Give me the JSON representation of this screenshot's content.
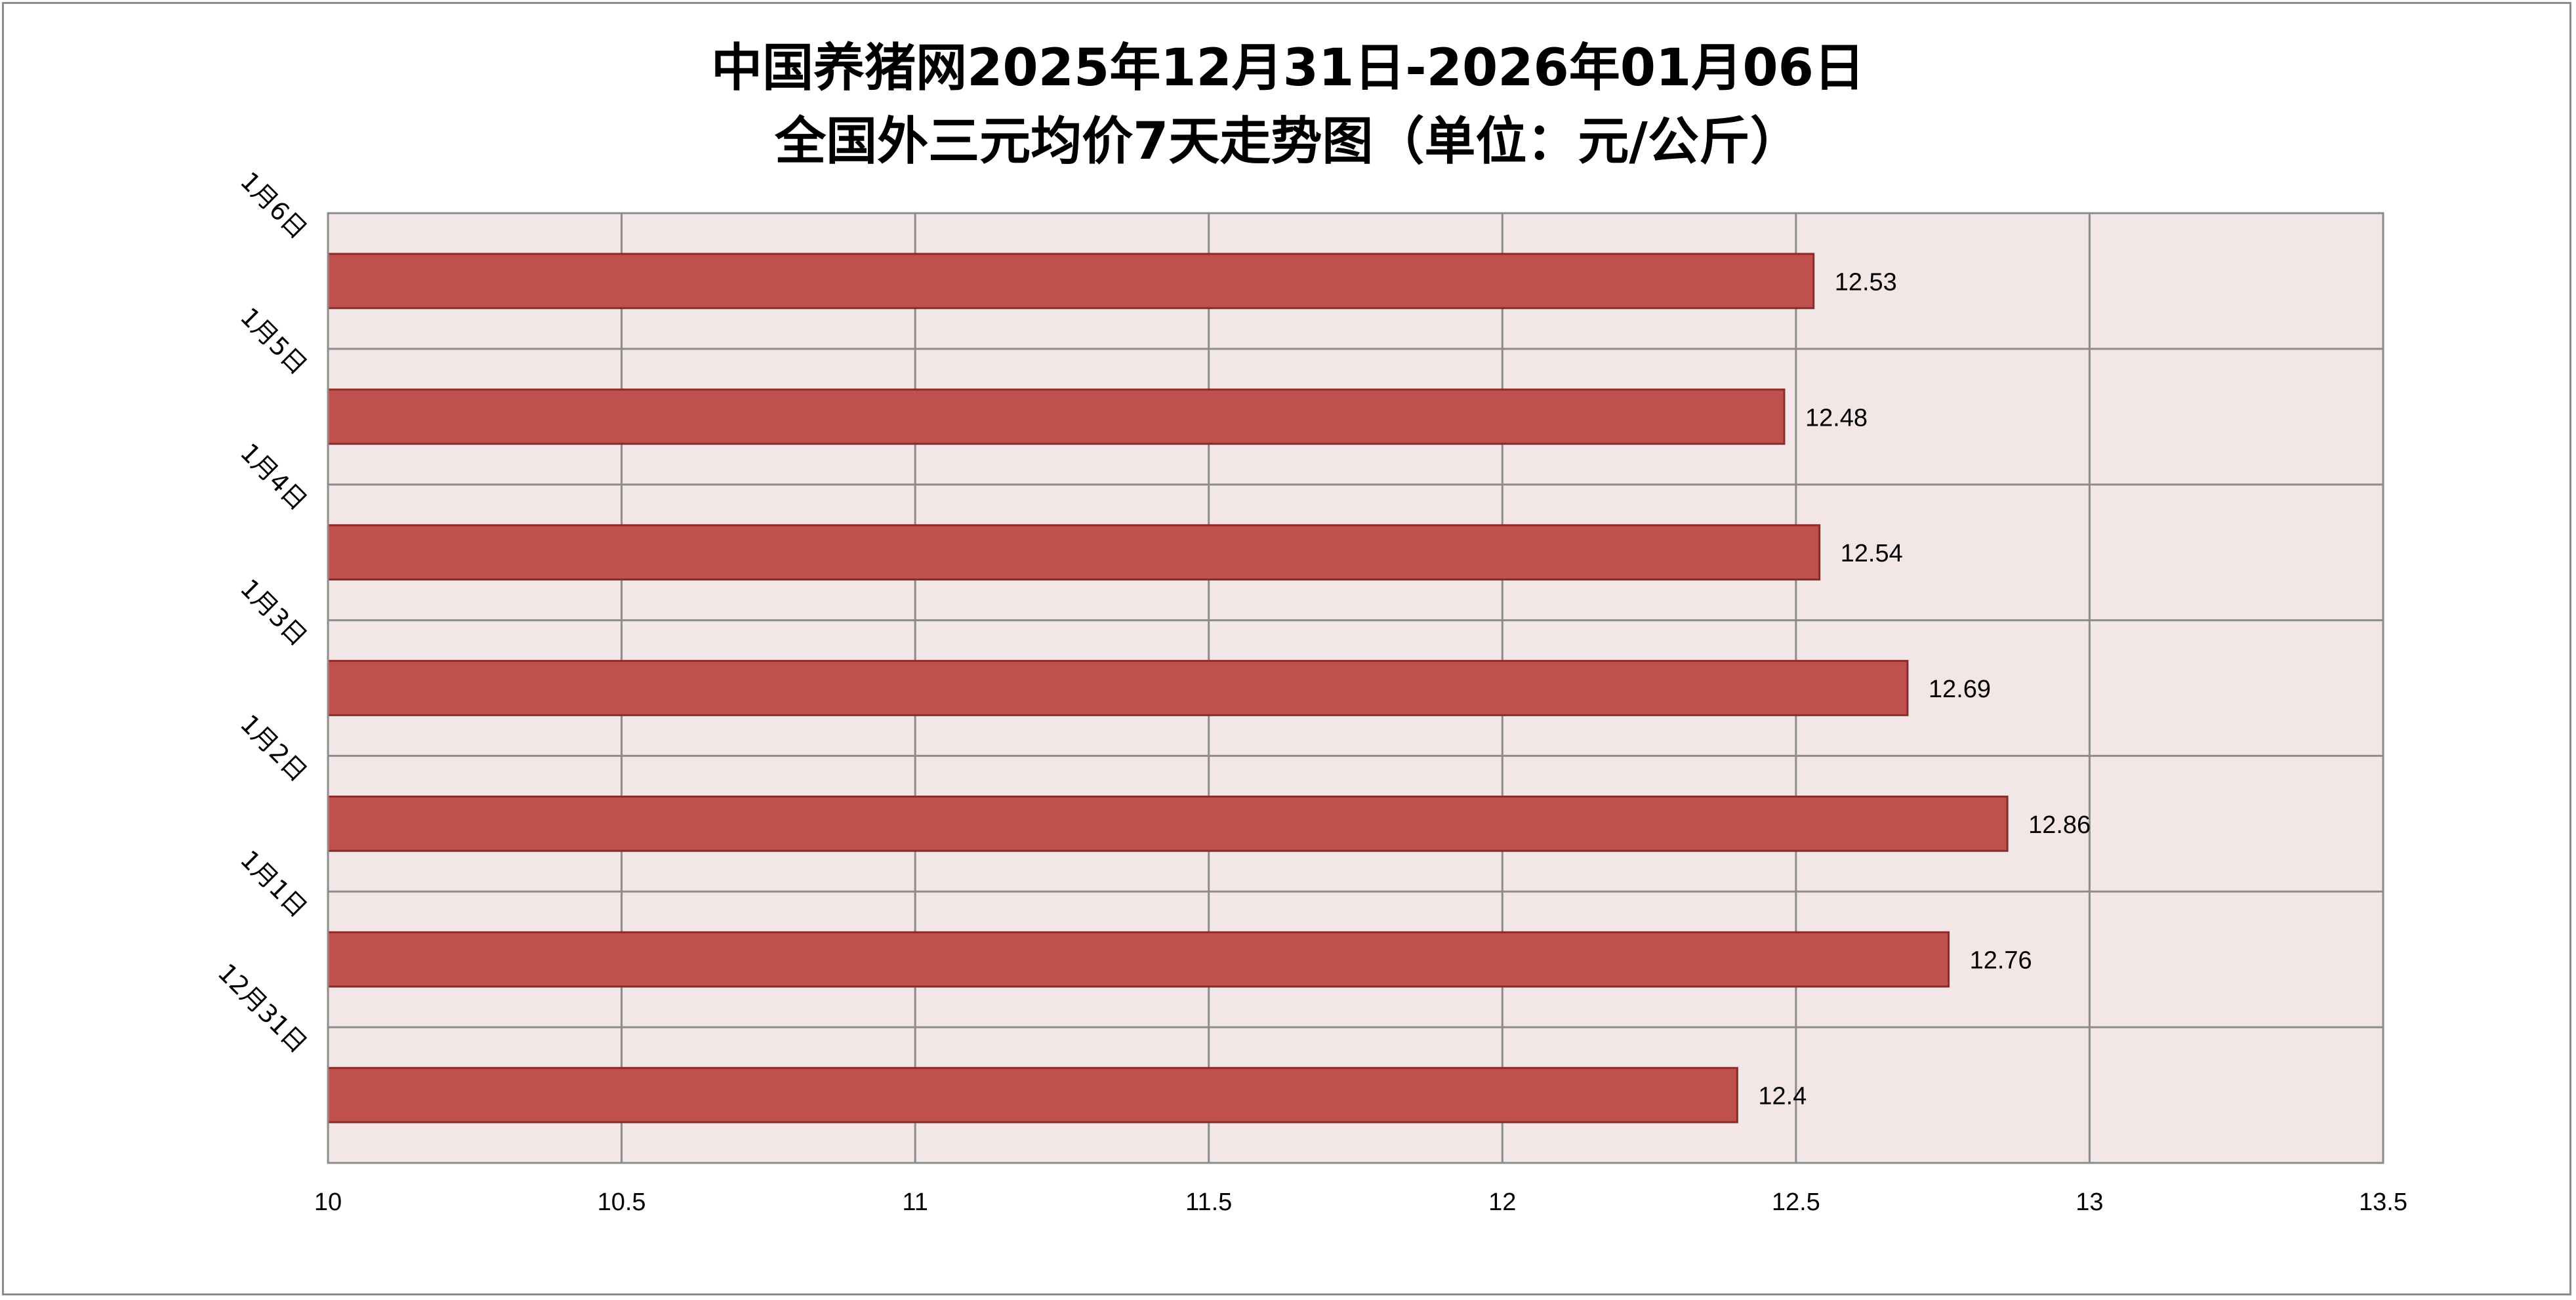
{
  "chart_data": {
    "type": "bar",
    "orientation": "horizontal",
    "title": "中国养猪网2025年12月31日-2026年01月06日\n全国外三元均价7天走势图（单位：元/公斤）",
    "title_lines": [
      "中国养猪网2025年12月31日-2026年01月06日",
      "全国外三元均价7天走势图（单位：元/公斤）"
    ],
    "categories": [
      "12月31日",
      "1月1日",
      "1月2日",
      "1月3日",
      "1月4日",
      "1月5日",
      "1月6日"
    ],
    "values": [
      12.4,
      12.76,
      12.86,
      12.69,
      12.54,
      12.48,
      12.53
    ],
    "value_labels": [
      "12.4",
      "12.76",
      "12.86",
      "12.69",
      "12.54",
      "12.48",
      "12.53"
    ],
    "xlim": [
      10,
      13.5
    ],
    "x_ticks": [
      10,
      10.5,
      11,
      11.5,
      12,
      12.5,
      13,
      13.5
    ],
    "x_tick_labels": [
      "10",
      "10.5",
      "11",
      "11.5",
      "12",
      "12.5",
      "13",
      "13.5"
    ],
    "xlabel": "",
    "ylabel": "",
    "grid": true,
    "legend": false,
    "colors": {
      "bar_fill": "#c0504d",
      "bar_stroke": "#8c2b28",
      "plot_background": "#f2e6e6",
      "grid": "#8c8c8c",
      "frame": "#8c8c8c"
    }
  }
}
